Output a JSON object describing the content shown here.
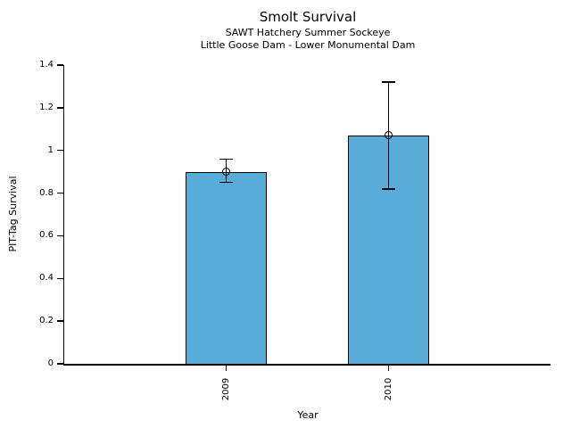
{
  "chart_data": {
    "type": "bar",
    "title": "Smolt Survival",
    "subtitle_line1": "SAWT Hatchery Summer Sockeye",
    "subtitle_line2": "Little Goose Dam - Lower Monumental Dam",
    "xlabel": "Year",
    "ylabel": "PIT-Tag Survival",
    "categories": [
      "2009",
      "2010"
    ],
    "values": [
      0.9,
      1.07
    ],
    "error_bars": [
      {
        "low": 0.85,
        "high": 0.96
      },
      {
        "low": 0.82,
        "high": 1.32
      }
    ],
    "ylim": [
      0,
      1.4
    ],
    "ytick_labels": [
      "0",
      "0.2",
      "0.4",
      "0.6",
      "0.8",
      "1",
      "1.2",
      "1.4"
    ],
    "bar_width_data_units": 0.5,
    "marker": "open-circle",
    "grid": false,
    "legend": false,
    "colors": {
      "bar_fill": "#5AACD8",
      "bar_edge": "#000000",
      "error_bar": "#000000",
      "axis": "#000000",
      "text": "#000000",
      "background": "#FFFFFF"
    }
  }
}
